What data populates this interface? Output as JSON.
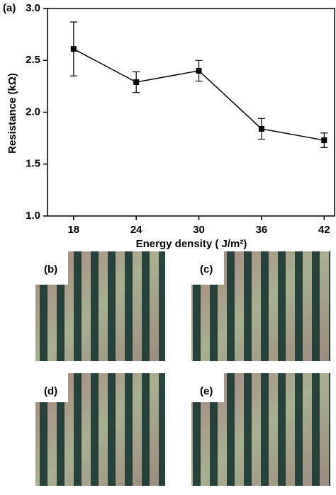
{
  "chart_data": {
    "type": "line",
    "panel_label": "(a)",
    "x_label": "Energy density ( J/m²)",
    "y_label": "Resistance (kΩ)",
    "x": [
      18,
      24,
      30,
      36,
      42
    ],
    "series": [
      {
        "name": "Resistance",
        "color": "#000000",
        "values": [
          2.61,
          2.29,
          2.4,
          1.84,
          1.73
        ],
        "errors": [
          0.26,
          0.1,
          0.1,
          0.1,
          0.07
        ]
      }
    ],
    "xlim": [
      15.5,
      43
    ],
    "xticks": [
      18,
      24,
      30,
      36,
      42
    ],
    "ylim": [
      1.0,
      3.0
    ],
    "yticks": [
      {
        "value": 1.0,
        "label": "1.0"
      },
      {
        "value": 1.5,
        "label": "1.5"
      },
      {
        "value": 2.0,
        "label": "2.0"
      },
      {
        "value": 2.5,
        "label": "2.5"
      },
      {
        "value": 3.0,
        "label": "3.0"
      }
    ]
  },
  "images": [
    "(b)",
    "(c)",
    "(d)",
    "(e)"
  ]
}
